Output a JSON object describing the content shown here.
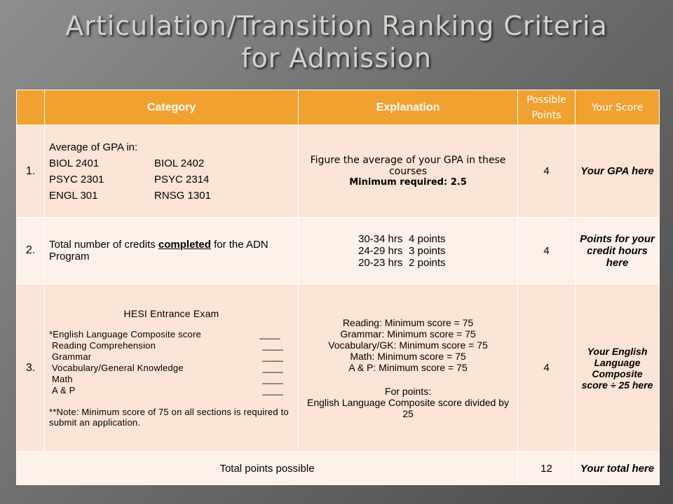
{
  "title": [
    "Articulation/Transition Ranking Criteria",
    "for Admission"
  ],
  "table": {
    "header": [
      "Category",
      "Explanation",
      "Possible Points",
      "Your Score"
    ],
    "rows": [
      {
        "number": "1.",
        "category": {
          "intro": "Average of GPA in:",
          "courses": [
            [
              "BIOL 2401",
              "BIOL 2402"
            ],
            [
              "PSYC 2301",
              "PSYC 2314"
            ],
            [
              "ENGL 301",
              "RNSG 1301"
            ]
          ]
        },
        "explanation": {
          "text": "Figure the average of your GPA in these courses",
          "minimum": "Minimum required: 2.5"
        },
        "points": 4,
        "score": "Your GPA here"
      },
      {
        "number": "2.",
        "category": {
          "before": "Total number of credits ",
          "emphasis": "completed",
          "after": " for the ADN Program"
        },
        "explanation": {
          "lines": [
            [
              "30-34 hrs",
              "4 points"
            ],
            [
              "24-29 hrs",
              "3 points"
            ],
            [
              "20-23 hrs",
              "2 points"
            ]
          ]
        },
        "points": 4,
        "score": "Points for your credit hours here"
      },
      {
        "number": "3.",
        "category": {
          "heading": "HESI Entrance Exam",
          "items": [
            [
              "*English Language Composite score",
              "____"
            ],
            [
              "Reading Comprehension",
              "____"
            ],
            [
              "Grammar",
              "____"
            ],
            [
              "Vocabulary/General Knowledge",
              "____"
            ],
            [
              "Math",
              "____"
            ],
            [
              "A & P",
              "____"
            ]
          ],
          "note": "**Note: Minimum score of 75 on all sections is required to submit an application."
        },
        "explanation": {
          "lines": [
            "Reading: Minimum score = 75",
            "Grammar: Minimum score = 75",
            "Vocabulary/GK: Minimum score = 75",
            "Math: Minimum score = 75",
            "A & P: Minimum score = 75"
          ],
          "points_heading": "For points:",
          "points_rule": "English Language Composite score divided by 25"
        },
        "points": 4,
        "score": "Your English Language Composite score ÷ 25 here"
      }
    ],
    "footer": {
      "label": "Total points possible",
      "points": 12,
      "score": "Your total here"
    }
  }
}
